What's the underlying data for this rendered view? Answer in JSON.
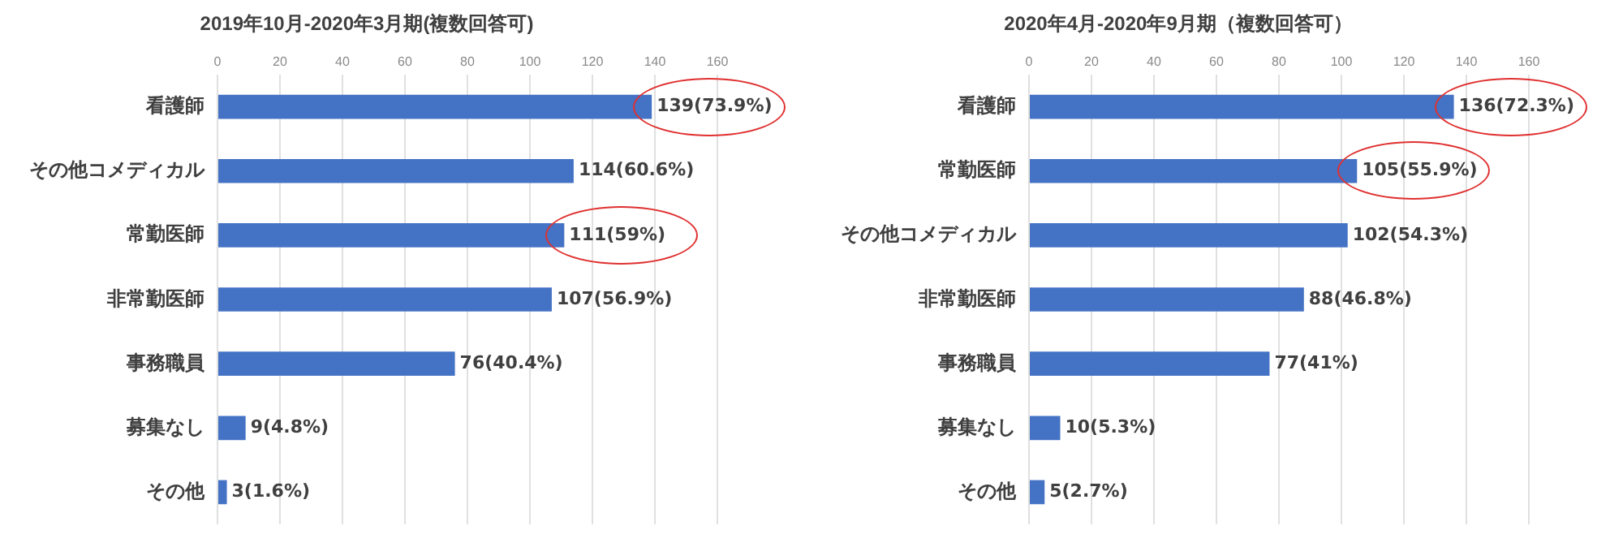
{
  "chart_data": [
    {
      "type": "bar",
      "orientation": "horizontal",
      "title": "2019年10月-2020年3月期(複数回答可)",
      "categories": [
        "看護師",
        "その他コメディカル",
        "常勤医師",
        "非常勤医師",
        "事務職員",
        "募集なし",
        "その他"
      ],
      "values": [
        139,
        114,
        111,
        107,
        76,
        9,
        3
      ],
      "value_labels": [
        "139(73.9%)",
        "114(60.6%)",
        "111(59%)",
        "107(56.9%)",
        "76(40.4%)",
        "9(4.8%)",
        "3(1.6%)"
      ],
      "color": "#4472c4",
      "xlim": [
        0,
        160
      ],
      "xticks": [
        0,
        20,
        40,
        60,
        80,
        100,
        120,
        140,
        160
      ],
      "grid": "x",
      "legend": false
    },
    {
      "type": "bar",
      "orientation": "horizontal",
      "title": "2020年4月-2020年9月期（複数回答可）",
      "categories": [
        "看護師",
        "常勤医師",
        "その他コメディカル",
        "非常勤医師",
        "事務職員",
        "募集なし",
        "その他"
      ],
      "values": [
        136,
        105,
        102,
        88,
        77,
        10,
        5
      ],
      "value_labels": [
        "136(72.3%)",
        "105(55.9%)",
        "102(54.3%)",
        "88(46.8%)",
        "77(41%)",
        "10(5.3%)",
        "5(2.7%)"
      ],
      "color": "#4472c4",
      "xlim": [
        0,
        160
      ],
      "xticks": [
        0,
        20,
        40,
        60,
        80,
        100,
        120,
        140,
        160
      ],
      "grid": "x",
      "legend": false
    }
  ]
}
